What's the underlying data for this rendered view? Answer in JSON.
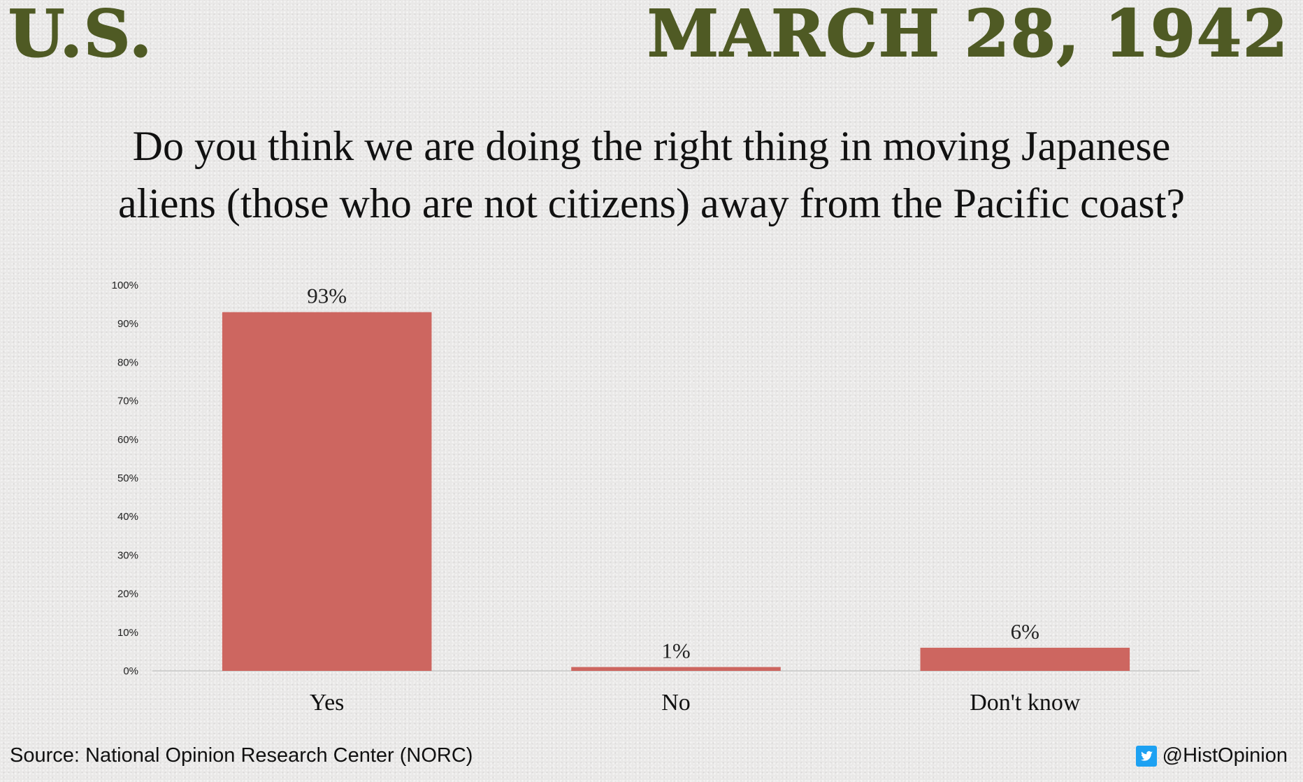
{
  "header": {
    "country": "U.S.",
    "date": "MARCH 28, 1942"
  },
  "question": {
    "line1": "Do you think we are doing the right thing in moving Japanese",
    "line2": "aliens (those who are not citizens) away from the Pacific coast?"
  },
  "colors": {
    "bar": "#cd6660",
    "header": "#4f5a24",
    "twitter": "#1da1f2"
  },
  "chart_data": {
    "type": "bar",
    "categories": [
      "Yes",
      "No",
      "Don't know"
    ],
    "values": [
      93,
      1,
      6
    ],
    "data_labels": [
      "93%",
      "1%",
      "6%"
    ],
    "title": "Do you think we are doing the right thing in moving Japanese aliens (those who are not citizens) away from the Pacific coast?",
    "xlabel": "",
    "ylabel": "",
    "ylim": [
      0,
      100
    ],
    "yticks": [
      "0%",
      "10%",
      "20%",
      "30%",
      "40%",
      "50%",
      "60%",
      "70%",
      "80%",
      "90%",
      "100%"
    ],
    "grid": false,
    "legend": "none"
  },
  "footer": {
    "source": "Source: National Opinion Research Center (NORC)",
    "twitter_icon": "twitter-bird-icon",
    "handle": "@HistOpinion"
  }
}
